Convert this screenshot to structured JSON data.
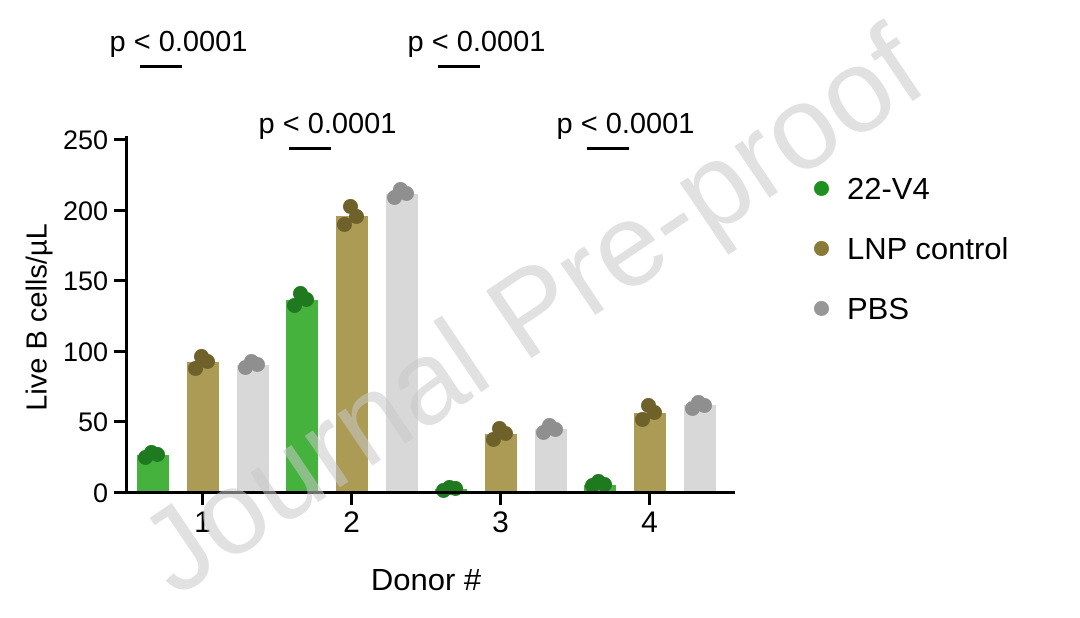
{
  "watermark": {
    "text": "Journal Pre-proof"
  },
  "legend": {
    "items": [
      {
        "label": "22-V4",
        "color": "#1f8f1f"
      },
      {
        "label": "LNP control",
        "color": "#8a7a38"
      },
      {
        "label": "PBS",
        "color": "#979797"
      }
    ]
  },
  "chart_data": {
    "type": "bar",
    "title": "",
    "xlabel": "Donor #",
    "ylabel": "Live B cells/µL",
    "ylim": [
      0,
      250
    ],
    "yticks": [
      0,
      50,
      100,
      150,
      200,
      250
    ],
    "categories": [
      "1",
      "2",
      "3",
      "4"
    ],
    "series": [
      {
        "name": "22-V4",
        "bar_color": "#45b23e",
        "dot_color": "#1f7a1f",
        "values": [
          27,
          137,
          3,
          6
        ],
        "points": [
          [
            25,
            27,
            29
          ],
          [
            133,
            137,
            141
          ],
          [
            2,
            3,
            4
          ],
          [
            5,
            6,
            8
          ]
        ]
      },
      {
        "name": "LNP control",
        "bar_color": "#ab9b55",
        "dot_color": "#6f612a",
        "values": [
          93,
          196,
          42,
          57
        ],
        "points": [
          [
            88,
            93,
            97
          ],
          [
            190,
            196,
            203
          ],
          [
            38,
            42,
            46
          ],
          [
            52,
            57,
            62
          ]
        ]
      },
      {
        "name": "PBS",
        "bar_color": "#d8d8d8",
        "dot_color": "#8f8f8f",
        "values": [
          91,
          212,
          45,
          62
        ],
        "points": [
          [
            89,
            91,
            93
          ],
          [
            209,
            212,
            215
          ],
          [
            43,
            45,
            48
          ],
          [
            60,
            62,
            64
          ]
        ]
      }
    ],
    "annotations": [
      {
        "text": "p < 0.0001",
        "group": 0,
        "level": 1
      },
      {
        "text": "p < 0.0001",
        "group": 1,
        "level": 2
      },
      {
        "text": "p < 0.0001",
        "group": 2,
        "level": 1
      },
      {
        "text": "p < 0.0001",
        "group": 3,
        "level": 2
      }
    ],
    "legend_position": "right",
    "grid": false
  }
}
